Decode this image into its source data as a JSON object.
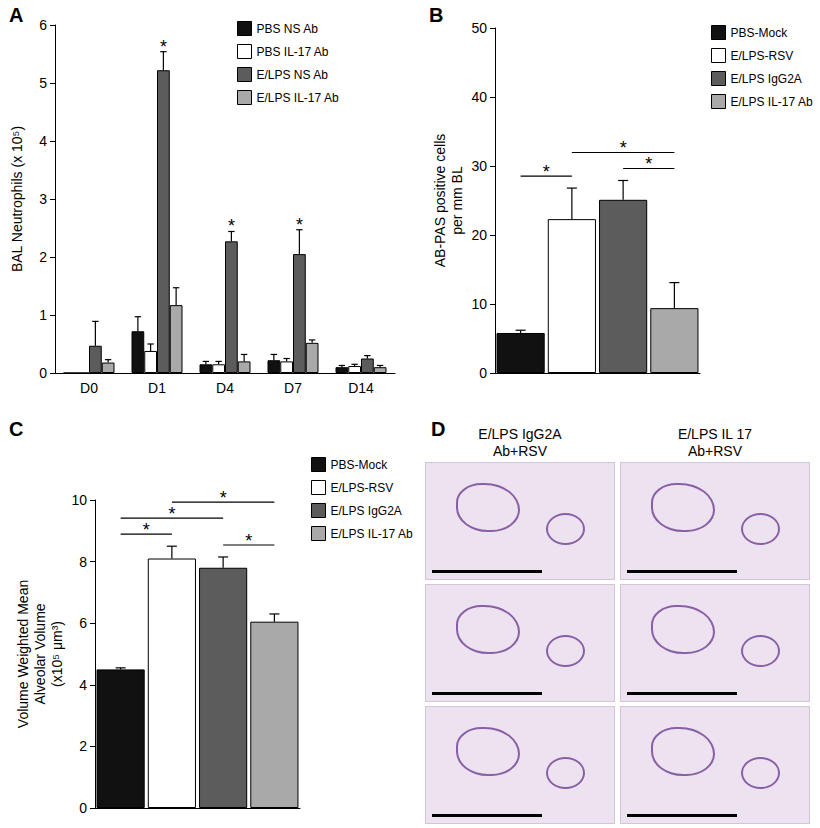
{
  "chart_data": [
    {
      "type": "bar",
      "title": "A",
      "categories": [
        "D0",
        "D1",
        "D4",
        "D7",
        "D14"
      ],
      "ylabel": "BAL Neutrophils (x 10⁵)",
      "ylim": [
        0,
        6
      ],
      "yticks": [
        0,
        1,
        2,
        3,
        4,
        5,
        6
      ],
      "grid": false,
      "legend": "upper right",
      "series": [
        {
          "name": "PBS NS Ab",
          "color": "#111111",
          "values": [
            0,
            0.72,
            0.15,
            0.22,
            0.1
          ],
          "errors": [
            0,
            0.25,
            0.05,
            0.1,
            0.03
          ]
        },
        {
          "name": "PBS IL-17 Ab",
          "color": "#ffffff",
          "values": [
            0,
            0.38,
            0.15,
            0.2,
            0.12
          ],
          "errors": [
            0,
            0.12,
            0.05,
            0.05,
            0.03
          ]
        },
        {
          "name": "E/LPS NS Ab",
          "color": "#5c5c5c",
          "values": [
            0.47,
            5.22,
            2.27,
            2.05,
            0.25
          ],
          "errors": [
            0.42,
            0.32,
            0.17,
            0.42,
            0.05
          ]
        },
        {
          "name": "E/LPS IL-17 Ab",
          "color": "#a9a9a9",
          "values": [
            0.18,
            1.17,
            0.2,
            0.52,
            0.1
          ],
          "errors": [
            0.05,
            0.3,
            0.12,
            0.05,
            0.03
          ]
        }
      ],
      "annotations": [
        {
          "category": "D1",
          "series": "E/LPS NS Ab",
          "text": "*"
        },
        {
          "category": "D4",
          "series": "E/LPS NS Ab",
          "text": "*"
        },
        {
          "category": "D7",
          "series": "E/LPS NS Ab",
          "text": "*"
        }
      ]
    },
    {
      "type": "bar",
      "title": "B",
      "ylabel": "AB-PAS positive cells\nper mm BL",
      "ylim": [
        0,
        50
      ],
      "yticks": [
        0,
        10,
        20,
        30,
        40,
        50
      ],
      "grid": false,
      "legend": "right",
      "tick_labels": "y",
      "series": [
        {
          "name": "PBS-Mock",
          "color": "#111111",
          "values": [
            5.8
          ],
          "errors": [
            0.4
          ]
        },
        {
          "name": "E/LPS-RSV",
          "color": "#ffffff",
          "values": [
            22.3
          ],
          "errors": [
            4.5
          ]
        },
        {
          "name": "E/LPS IgG2A",
          "color": "#5c5c5c",
          "values": [
            25.1
          ],
          "errors": [
            2.8
          ]
        },
        {
          "name": "E/LPS IL-17 Ab",
          "color": "#a9a9a9",
          "values": [
            9.4
          ],
          "errors": [
            3.7
          ]
        }
      ],
      "significance": [
        {
          "from": "PBS-Mock",
          "to": "E/LPS-RSV",
          "text": "*"
        },
        {
          "from": "E/LPS IgG2A",
          "to": "E/LPS IL-17 Ab",
          "text": "*"
        },
        {
          "from": "E/LPS-RSV",
          "to": "E/LPS IL-17 Ab",
          "text": "*"
        }
      ]
    },
    {
      "type": "bar",
      "title": "C",
      "ylabel": "Volume Weighted Mean\nAlveolar Volume\n(x10⁵ μm³)",
      "ylim": [
        0,
        10
      ],
      "yticks": [
        0,
        2,
        4,
        6,
        8,
        10
      ],
      "grid": false,
      "legend": "right",
      "tick_labels": "y",
      "series": [
        {
          "name": "PBS-Mock",
          "color": "#111111",
          "values": [
            4.5
          ],
          "errors": [
            0.05
          ]
        },
        {
          "name": "E/LPS-RSV",
          "color": "#ffffff",
          "values": [
            8.1
          ],
          "errors": [
            0.4
          ]
        },
        {
          "name": "E/LPS IgG2A",
          "color": "#5c5c5c",
          "values": [
            7.8
          ],
          "errors": [
            0.35
          ]
        },
        {
          "name": "E/LPS IL-17 Ab",
          "color": "#a9a9a9",
          "values": [
            6.05
          ],
          "errors": [
            0.25
          ]
        }
      ],
      "significance": [
        {
          "from": "PBS-Mock",
          "to": "E/LPS-RSV",
          "text": "*"
        },
        {
          "from": "E/LPS IgG2A",
          "to": "E/LPS IL-17 Ab",
          "text": "*"
        },
        {
          "from": "PBS-Mock",
          "to": "E/LPS IgG2A",
          "text": "*"
        },
        {
          "from": "E/LPS-RSV",
          "to": "E/LPS IL-17 Ab",
          "text": "*"
        }
      ]
    }
  ],
  "image_panel": {
    "label": "D",
    "columns": [
      "E/LPS IgG2A\nAb+RSV",
      "E/LPS IL 17\nAb+RSV"
    ],
    "rows": 3
  }
}
